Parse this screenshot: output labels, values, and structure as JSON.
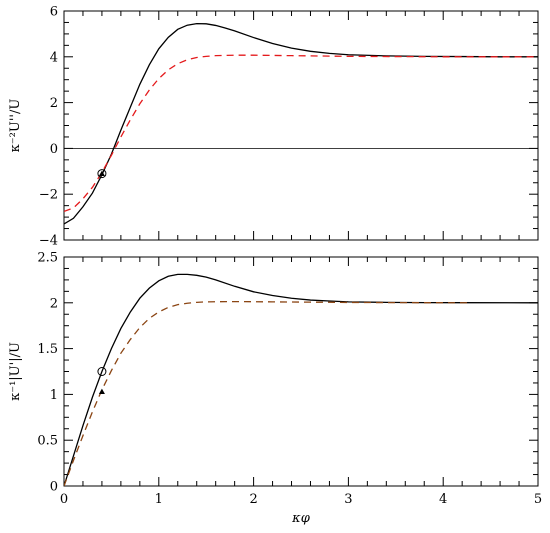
{
  "chart_data": [
    {
      "type": "line",
      "title": "",
      "xlabel": "",
      "ylabel": "κ⁻²U''/U",
      "xlim": [
        0,
        5
      ],
      "ylim": [
        -4,
        6
      ],
      "xticks": [
        0,
        1,
        2,
        3,
        4,
        5
      ],
      "xtick_labels": [
        "",
        "",
        "",
        "",
        "",
        ""
      ],
      "yticks": [
        -4,
        -2,
        0,
        2,
        4,
        6
      ],
      "ytick_labels": [
        "−4",
        "−2",
        "0",
        "2",
        "4",
        "6"
      ],
      "grid": false,
      "reference_line": {
        "y": 0,
        "color": "#000000"
      },
      "series": [
        {
          "style": "solid",
          "color": "#000000",
          "x": [
            0.0,
            0.1,
            0.2,
            0.3,
            0.4,
            0.5,
            0.6,
            0.7,
            0.8,
            0.9,
            1.0,
            1.1,
            1.2,
            1.3,
            1.4,
            1.5,
            1.6,
            1.7,
            1.8,
            2.0,
            2.2,
            2.4,
            2.6,
            2.8,
            3.0,
            3.4,
            3.8,
            4.2,
            4.6,
            5.0
          ],
          "y": [
            -3.3,
            -3.05,
            -2.55,
            -1.95,
            -1.15,
            -0.25,
            0.8,
            1.8,
            2.8,
            3.65,
            4.35,
            4.85,
            5.2,
            5.38,
            5.45,
            5.44,
            5.37,
            5.26,
            5.13,
            4.84,
            4.58,
            4.38,
            4.24,
            4.15,
            4.09,
            4.04,
            4.02,
            4.01,
            4.0,
            4.0
          ]
        },
        {
          "style": "dashed",
          "color": "#e41a1c",
          "x": [
            0.0,
            0.1,
            0.2,
            0.3,
            0.4,
            0.5,
            0.6,
            0.7,
            0.8,
            0.9,
            1.0,
            1.1,
            1.2,
            1.3,
            1.4,
            1.5,
            1.6,
            1.8,
            2.0,
            2.2,
            2.4,
            2.6,
            3.0,
            3.5,
            4.0,
            4.5,
            5.0
          ],
          "y": [
            -2.75,
            -2.6,
            -2.2,
            -1.7,
            -1.05,
            -0.3,
            0.5,
            1.25,
            1.95,
            2.55,
            3.05,
            3.43,
            3.7,
            3.87,
            3.97,
            4.02,
            4.05,
            4.07,
            4.07,
            4.06,
            4.05,
            4.04,
            4.02,
            4.01,
            4.0,
            4.0,
            4.0
          ]
        }
      ],
      "markers": [
        {
          "shape": "open-circle",
          "x": 0.4,
          "y": -1.1
        },
        {
          "shape": "filled-triangle",
          "x": 0.4,
          "y": -1.1
        }
      ]
    },
    {
      "type": "line",
      "title": "",
      "xlabel": "κφ",
      "ylabel": "κ⁻¹|U'|/U",
      "xlim": [
        0,
        5
      ],
      "ylim": [
        0,
        2.5
      ],
      "xticks": [
        0,
        1,
        2,
        3,
        4,
        5
      ],
      "xtick_labels": [
        "0",
        "1",
        "2",
        "3",
        "4",
        "5"
      ],
      "yticks": [
        0,
        0.5,
        1,
        1.5,
        2,
        2.5
      ],
      "ytick_labels": [
        "0",
        "0.5",
        "1",
        "1.5",
        "2",
        "2.5"
      ],
      "grid": false,
      "series": [
        {
          "style": "solid",
          "color": "#000000",
          "x": [
            0.0,
            0.1,
            0.2,
            0.3,
            0.4,
            0.5,
            0.6,
            0.7,
            0.8,
            0.9,
            1.0,
            1.1,
            1.2,
            1.3,
            1.4,
            1.5,
            1.6,
            1.8,
            2.0,
            2.2,
            2.4,
            2.6,
            2.8,
            3.0,
            3.4,
            3.8,
            4.2,
            5.0
          ],
          "y": [
            0.0,
            0.33,
            0.66,
            0.97,
            1.25,
            1.5,
            1.72,
            1.9,
            2.05,
            2.16,
            2.24,
            2.29,
            2.31,
            2.31,
            2.3,
            2.28,
            2.25,
            2.18,
            2.12,
            2.08,
            2.05,
            2.03,
            2.02,
            2.01,
            2.005,
            2.002,
            2.001,
            2.0
          ]
        },
        {
          "style": "dashed",
          "color": "#8b4513",
          "x": [
            0.0,
            0.1,
            0.2,
            0.3,
            0.4,
            0.5,
            0.6,
            0.7,
            0.8,
            0.9,
            1.0,
            1.1,
            1.2,
            1.3,
            1.4,
            1.5,
            1.6,
            1.8,
            2.0,
            2.2,
            2.6,
            3.0,
            3.5,
            4.0,
            4.3
          ],
          "y": [
            0.0,
            0.28,
            0.55,
            0.81,
            1.05,
            1.26,
            1.45,
            1.6,
            1.73,
            1.83,
            1.9,
            1.95,
            1.98,
            1.995,
            2.005,
            2.01,
            2.012,
            2.013,
            2.012,
            2.01,
            2.007,
            2.004,
            2.002,
            2.001,
            2.0
          ]
        }
      ],
      "markers": [
        {
          "shape": "open-circle",
          "x": 0.4,
          "y": 1.25
        },
        {
          "shape": "filled-triangle",
          "x": 0.4,
          "y": 1.03
        }
      ]
    }
  ]
}
